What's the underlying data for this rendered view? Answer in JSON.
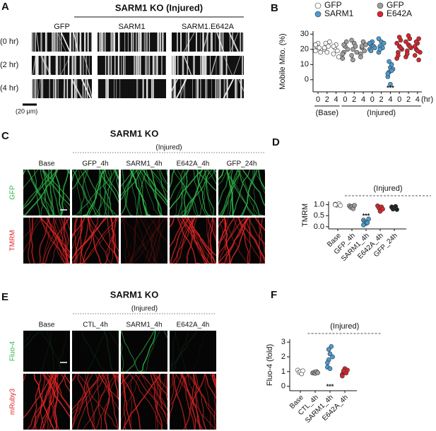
{
  "figure_panels": [
    {
      "letter": "A",
      "title": "SARM1 KO (Injured)",
      "columns": [
        "GFP",
        "SARM1",
        "SARM1.E642A"
      ],
      "rows": [
        "(0 hr)",
        "(2 hr)",
        "(4 hr)"
      ],
      "scale_bar": "(20 μm)"
    },
    {
      "letter": "C",
      "title": "SARM1 KO",
      "subtitle": "(Injured)",
      "columns": [
        "Base",
        "GFP_4h",
        "SARM1_4h",
        "E642A_4h",
        "GFP_24h"
      ],
      "rows": [
        "GFP",
        "TMRM"
      ]
    },
    {
      "letter": "E",
      "title": "SARM1 KO",
      "subtitle": "(Injured)",
      "columns": [
        "Base",
        "CTL_4h",
        "SARM1_4h",
        "E642A_4h"
      ],
      "rows": [
        "Fluo-4",
        "mRuby3"
      ]
    }
  ],
  "chart_data": [
    {
      "type": "dotplot",
      "panel": "B",
      "ylabel": "Mobile Mito. (%)",
      "xlabel": "(hr)",
      "categories": [
        "0",
        "2",
        "4",
        "0",
        "2",
        "4",
        "0",
        "2",
        "4",
        "0",
        "2",
        "4"
      ],
      "colors": [
        "#ffffff",
        "#ffffff",
        "#ffffff",
        "#9e9e9e",
        "#9e9e9e",
        "#9e9e9e",
        "#4a9bd4",
        "#4a9bd4",
        "#4a9bd4",
        "#d9252c",
        "#d9252c",
        "#d9252c"
      ],
      "values": [
        [
          19,
          22,
          24,
          21,
          18,
          23
        ],
        [
          20,
          24,
          18,
          22,
          25,
          21
        ],
        [
          17,
          21,
          23,
          19,
          15,
          22
        ],
        [
          14,
          18,
          22,
          25,
          20,
          17,
          23
        ],
        [
          16,
          20,
          24,
          22,
          18,
          26,
          13
        ],
        [
          17,
          21,
          25,
          19,
          23,
          15,
          22
        ],
        [
          20,
          23,
          25,
          22,
          21,
          24,
          19
        ],
        [
          18,
          22,
          25,
          21,
          24,
          27,
          20
        ],
        [
          2,
          5,
          8,
          10,
          7,
          4,
          12,
          -3,
          6
        ],
        [
          14,
          18,
          22,
          26,
          20,
          24,
          16,
          28,
          21
        ],
        [
          15,
          19,
          23,
          27,
          21,
          25,
          17,
          29,
          22
        ],
        [
          16,
          20,
          24,
          27,
          18,
          22,
          25,
          19,
          13
        ]
      ],
      "legend": [
        {
          "name": "GFP",
          "color": "#ffffff"
        },
        {
          "name": "GFP",
          "color": "#9e9e9e"
        },
        {
          "name": "SARM1",
          "color": "#4a9bd4"
        },
        {
          "name": "E642A",
          "color": "#d9252c"
        }
      ],
      "annotations": [
        "***",
        "(Base)",
        "(Injured)"
      ],
      "ylim": [
        -8,
        32
      ],
      "yticks": [
        0,
        10,
        20,
        30
      ]
    },
    {
      "type": "dotplot",
      "panel": "D",
      "ylabel": "TMRM",
      "categories": [
        "Base",
        "GFP_4h",
        "SARM1_4h",
        "E642A_4h",
        "GFP_24h"
      ],
      "colors": [
        "#ffffff",
        "#9e9e9e",
        "#4a9bd4",
        "#d9252c",
        "#222222"
      ],
      "values": [
        [
          1.02,
          0.98,
          1.0,
          1.04,
          0.96,
          1.0
        ],
        [
          0.95,
          0.88,
          0.92,
          0.82,
          0.97
        ],
        [
          0.3,
          0.22,
          0.15,
          0.18,
          0.35,
          0.08
        ],
        [
          0.95,
          0.85,
          0.7,
          0.9,
          0.8
        ],
        [
          0.9,
          0.8,
          0.85,
          0.92,
          0.78,
          0.88
        ]
      ],
      "annotations": [
        "(Injured)",
        "***"
      ],
      "ylim": [
        -0.1,
        1.15
      ],
      "yticks": [
        {
          "value": 0,
          "label": "0.0"
        },
        {
          "value": 0.5,
          "label": "0.5"
        },
        {
          "value": 1,
          "label": "1.0"
        }
      ]
    },
    {
      "type": "dotplot",
      "panel": "F",
      "ylabel": "Fluo-4 (fold)",
      "categories": [
        "Base",
        "CTL_4h",
        "SARM1_4h",
        "E642A_4h"
      ],
      "colors": [
        "#ffffff",
        "#9e9e9e",
        "#4a9bd4",
        "#d9252c"
      ],
      "values": [
        [
          1.1,
          0.95,
          1.0,
          0.85,
          1.05
        ],
        [
          0.9,
          0.95,
          0.88,
          1.0,
          0.92
        ],
        [
          1.3,
          1.8,
          2.2,
          2.7,
          2.0,
          1.6,
          2.5,
          1.2
        ],
        [
          0.8,
          1.0,
          1.2,
          0.9,
          1.1,
          0.7,
          1.05
        ]
      ],
      "annotations": [
        "(Injured)",
        "***"
      ],
      "ylim": [
        -0.3,
        3.2
      ],
      "yticks": [
        0,
        1,
        2,
        3
      ]
    }
  ]
}
